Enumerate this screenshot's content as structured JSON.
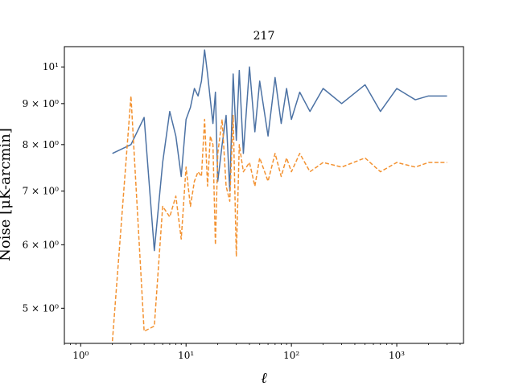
{
  "chart_data": {
    "type": "line",
    "title": "217",
    "xlabel": "ℓ",
    "ylabel": "Noise [μK-arcmin]",
    "xscale": "log",
    "yscale": "log",
    "xlim": [
      0.7,
      4300
    ],
    "ylim": [
      4.52,
      10.6
    ],
    "grid": false,
    "legend": "none",
    "xticks": [
      {
        "value": 1,
        "label": "10⁰"
      },
      {
        "value": 10,
        "label": "10¹"
      },
      {
        "value": 100,
        "label": "10²"
      },
      {
        "value": 1000,
        "label": "10³"
      }
    ],
    "yticks": [
      {
        "value": 5,
        "label": "5 × 10⁰"
      },
      {
        "value": 6,
        "label": "6 × 10⁰"
      },
      {
        "value": 7,
        "label": "7 × 10⁰"
      },
      {
        "value": 8,
        "label": "8 × 10⁰"
      },
      {
        "value": 9,
        "label": "9 × 10⁰"
      },
      {
        "value": 10,
        "label": "10¹"
      }
    ],
    "series": [
      {
        "color": "#4c72a4",
        "dash": "solid",
        "x": [
          2,
          3,
          4,
          5,
          6,
          7,
          8,
          9,
          10,
          11,
          12,
          13,
          14,
          15,
          16,
          17,
          18,
          19,
          20,
          22,
          24,
          26,
          28,
          30,
          32,
          35,
          40,
          45,
          50,
          60,
          70,
          80,
          90,
          100,
          120,
          150,
          200,
          300,
          500,
          700,
          1000,
          1500,
          2000,
          3000
        ],
        "y": [
          7.8,
          8.0,
          8.65,
          5.9,
          7.6,
          8.8,
          8.2,
          7.3,
          8.6,
          8.9,
          9.4,
          9.2,
          9.6,
          10.5,
          9.8,
          9.1,
          8.5,
          9.3,
          7.2,
          8.0,
          8.7,
          7.0,
          9.8,
          8.1,
          9.9,
          7.8,
          10.0,
          8.3,
          9.6,
          8.2,
          9.7,
          8.5,
          9.4,
          8.6,
          9.3,
          8.8,
          9.4,
          9.0,
          9.5,
          8.8,
          9.4,
          9.1,
          9.2,
          9.2
        ]
      },
      {
        "color": "#f39231",
        "dash": "dashed",
        "x": [
          2,
          3,
          4,
          5,
          6,
          7,
          8,
          9,
          10,
          11,
          12,
          13,
          14,
          15,
          16,
          17,
          18,
          19,
          20,
          22,
          24,
          26,
          28,
          30,
          32,
          35,
          40,
          45,
          50,
          60,
          70,
          80,
          90,
          100,
          120,
          150,
          200,
          300,
          500,
          700,
          1000,
          1500,
          2000,
          3000
        ],
        "y": [
          4.55,
          9.2,
          4.68,
          4.75,
          6.7,
          6.5,
          6.9,
          6.1,
          7.5,
          6.7,
          7.2,
          7.4,
          7.3,
          8.6,
          7.1,
          8.2,
          8.0,
          6.0,
          7.8,
          8.6,
          7.1,
          6.8,
          8.7,
          5.8,
          8.0,
          7.4,
          7.6,
          7.1,
          7.7,
          7.2,
          7.8,
          7.3,
          7.7,
          7.4,
          7.8,
          7.4,
          7.6,
          7.5,
          7.7,
          7.4,
          7.6,
          7.5,
          7.6,
          7.6
        ]
      }
    ]
  }
}
